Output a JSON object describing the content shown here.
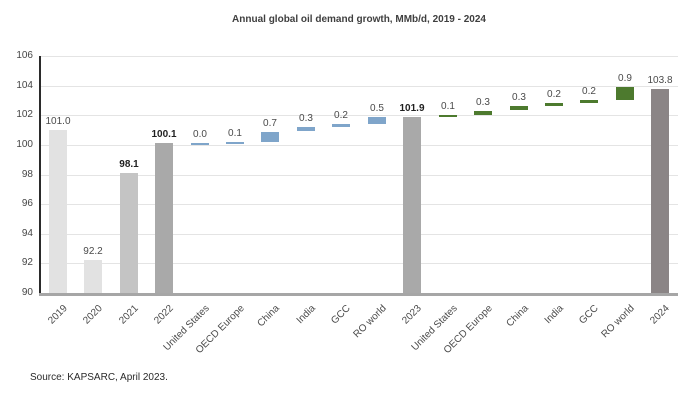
{
  "chart_data": {
    "type": "bar",
    "subtype": "waterfall",
    "title": "Annual global oil demand growth, MMb/d, 2019 - 2024",
    "xlabel": "",
    "ylabel": "",
    "ylim": [
      90,
      106
    ],
    "ytick_step": 2,
    "grid": true,
    "legend": "none",
    "source_note": "Source: KAPSARC, April 2023.",
    "colors": {
      "total_light_gray": "#e2e2e2",
      "total_medium_gray": "#c4c4c4",
      "total_gray": "#a9a9a9",
      "total_dark_gray": "#8b8586",
      "delta_blue_2023_period": "#7fa5ca",
      "delta_green_2024_period": "#4d7a2e",
      "gridline": "#e4e4e4",
      "baseline": "#a6a6a6",
      "axis_line": "#2b2b2b"
    },
    "bars": [
      {
        "label": "2019",
        "value": 101.0,
        "display": "101.0",
        "kind": "total",
        "color": "#e2e2e2",
        "bold": false
      },
      {
        "label": "2020",
        "value": 92.2,
        "display": "92.2",
        "kind": "total",
        "color": "#e2e2e2",
        "bold": false
      },
      {
        "label": "2021",
        "value": 98.1,
        "display": "98.1",
        "kind": "total",
        "color": "#c4c4c4",
        "bold": true
      },
      {
        "label": "2022",
        "value": 100.1,
        "display": "100.1",
        "kind": "total",
        "color": "#a9a9a9",
        "bold": true
      },
      {
        "label": "United States",
        "value": 0.0,
        "display": "0.0",
        "kind": "delta",
        "color": "#7fa5ca",
        "bold": false
      },
      {
        "label": "OECD Europe",
        "value": 0.1,
        "display": "0.1",
        "kind": "delta",
        "color": "#7fa5ca",
        "bold": false
      },
      {
        "label": "China",
        "value": 0.7,
        "display": "0.7",
        "kind": "delta",
        "color": "#7fa5ca",
        "bold": false
      },
      {
        "label": "India",
        "value": 0.3,
        "display": "0.3",
        "kind": "delta",
        "color": "#7fa5ca",
        "bold": false
      },
      {
        "label": "GCC",
        "value": 0.2,
        "display": "0.2",
        "kind": "delta",
        "color": "#7fa5ca",
        "bold": false
      },
      {
        "label": "RO world",
        "value": 0.5,
        "display": "0.5",
        "kind": "delta",
        "color": "#7fa5ca",
        "bold": false
      },
      {
        "label": "2023",
        "value": 101.9,
        "display": "101.9",
        "kind": "total",
        "color": "#a9a9a9",
        "bold": true
      },
      {
        "label": "United States",
        "value": 0.1,
        "display": "0.1",
        "kind": "delta",
        "color": "#4d7a2e",
        "bold": false
      },
      {
        "label": "OECD Europe",
        "value": 0.3,
        "display": "0.3",
        "kind": "delta",
        "color": "#4d7a2e",
        "bold": false
      },
      {
        "label": "China",
        "value": 0.3,
        "display": "0.3",
        "kind": "delta",
        "color": "#4d7a2e",
        "bold": false
      },
      {
        "label": "India",
        "value": 0.2,
        "display": "0.2",
        "kind": "delta",
        "color": "#4d7a2e",
        "bold": false
      },
      {
        "label": "GCC",
        "value": 0.2,
        "display": "0.2",
        "kind": "delta",
        "color": "#4d7a2e",
        "bold": false
      },
      {
        "label": "RO world",
        "value": 0.9,
        "display": "0.9",
        "kind": "delta",
        "color": "#4d7a2e",
        "bold": false
      },
      {
        "label": "2024",
        "value": 103.8,
        "display": "103.8",
        "kind": "total",
        "color": "#8b8586",
        "bold": false
      }
    ]
  }
}
